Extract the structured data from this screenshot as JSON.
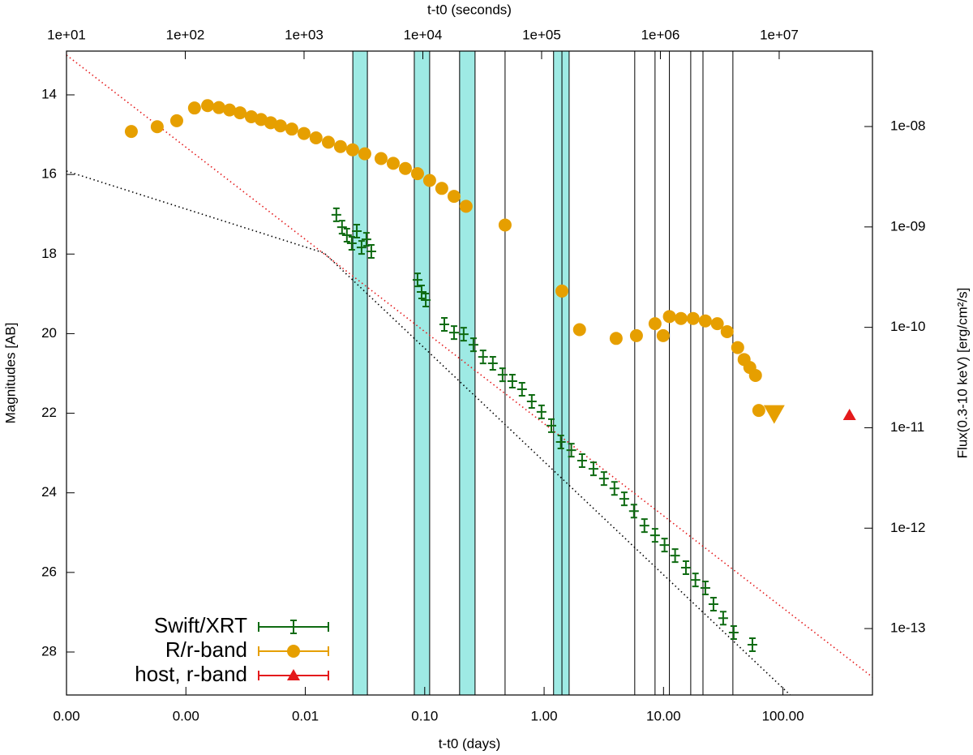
{
  "chart_data": {
    "type": "scatter",
    "xlabel": "t-t0 (days)",
    "x2label": "t-t0 (seconds)",
    "ylabel": "Magnitudes [AB]",
    "y2label": "Flux(0.3-10 keV) [erg/cm²/s]",
    "x_log": true,
    "y2_log": true,
    "y_reversed": true,
    "xlim": [
      0.0001,
      562
    ],
    "x2lim": [
      10,
      61000000
    ],
    "ylim": [
      12.9,
      29.08
    ],
    "y2lim": [
      2.18e-14,
      5.64e-08
    ],
    "xticks": [
      {
        "value": 0.0001,
        "label": "0.00"
      },
      {
        "value": 0.001,
        "label": "0.00"
      },
      {
        "value": 0.01,
        "label": "0.01"
      },
      {
        "value": 0.1,
        "label": "0.10"
      },
      {
        "value": 1,
        "label": "1.00"
      },
      {
        "value": 10,
        "label": "10.00"
      },
      {
        "value": 100,
        "label": "100.00"
      }
    ],
    "x2ticks": [
      {
        "value": 10,
        "label": "1e+01"
      },
      {
        "value": 100,
        "label": "1e+02"
      },
      {
        "value": 1000,
        "label": "1e+03"
      },
      {
        "value": 10000,
        "label": "1e+04"
      },
      {
        "value": 100000,
        "label": "1e+05"
      },
      {
        "value": 1000000,
        "label": "1e+06"
      },
      {
        "value": 10000000,
        "label": "1e+07"
      }
    ],
    "yticks": [
      14,
      16,
      18,
      20,
      22,
      24,
      26,
      28
    ],
    "y2ticks": [
      {
        "value": 1e-08,
        "label": "1e-08"
      },
      {
        "value": 1e-09,
        "label": "1e-09"
      },
      {
        "value": 1e-10,
        "label": "1e-10"
      },
      {
        "value": 1e-11,
        "label": "1e-11"
      },
      {
        "value": 1e-12,
        "label": "1e-12"
      },
      {
        "value": 1e-13,
        "label": "1e-13"
      }
    ],
    "legend": "lower left",
    "band_color": "#9eeae4",
    "bands": [
      [
        0.025,
        0.0331
      ],
      [
        0.0818,
        0.11
      ],
      [
        0.196,
        0.264
      ],
      [
        1.2,
        1.62
      ]
    ],
    "vlines": [
      0.025,
      0.0331,
      0.0818,
      0.11,
      0.196,
      0.264,
      0.471,
      1.2,
      1.41,
      1.62,
      5.74,
      8.49,
      11.2,
      16.9,
      21.4,
      38.1
    ],
    "series": [
      {
        "name": "Swift/XRT",
        "color": "#0f6b12",
        "axis": "y2",
        "marker": "cross",
        "x": [
          0.0182,
          0.0203,
          0.0223,
          0.0245,
          0.027,
          0.0296,
          0.0325,
          0.0357,
          0.0871,
          0.0942,
          0.102,
          0.146,
          0.176,
          0.212,
          0.256,
          0.308,
          0.372,
          0.449,
          0.542,
          0.653,
          0.788,
          0.951,
          1.15,
          1.38,
          1.69,
          2.08,
          2.59,
          3.17,
          3.88,
          4.69,
          5.65,
          6.92,
          8.49,
          10.2,
          12.5,
          15.4,
          18.5,
          22.4,
          26.2,
          31.6,
          38.7,
          55.5
        ],
        "values": [
          1.32e-09,
          9.95e-10,
          8.28e-10,
          6.88e-10,
          9.08e-10,
          6.25e-10,
          7.53e-10,
          5.7e-10,
          2.97e-10,
          2.25e-10,
          1.87e-10,
          1.07e-10,
          8.87e-11,
          8.55e-11,
          6.71e-11,
          5.08e-11,
          4.38e-11,
          3.37e-11,
          2.91e-11,
          2.42e-11,
          1.83e-11,
          1.44e-11,
          1.05e-11,
          7.21e-12,
          5.98e-12,
          4.7e-12,
          3.9e-12,
          3.12e-12,
          2.49e-12,
          1.96e-12,
          1.48e-12,
          1.06e-12,
          8.49e-13,
          6.79e-13,
          5.33e-13,
          4.04e-13,
          3.05e-13,
          2.54e-13,
          1.75e-13,
          1.27e-13,
          9.12e-14,
          6.9e-14
        ]
      },
      {
        "name": "R/r-band",
        "color": "#e69f00",
        "axis": "y",
        "marker": "circle",
        "x": [
          0.000349,
          0.000575,
          0.000838,
          0.00118,
          0.00152,
          0.00189,
          0.00232,
          0.00284,
          0.00353,
          0.00426,
          0.00513,
          0.00619,
          0.00771,
          0.00975,
          0.0123,
          0.0156,
          0.0197,
          0.0249,
          0.0315,
          0.0431,
          0.0545,
          0.0689,
          0.0871,
          0.11,
          0.139,
          0.176,
          0.222,
          0.471,
          1.41,
          1.98,
          4.01,
          5.93,
          8.49,
          9.93,
          11.2,
          14.0,
          17.7,
          22.4,
          28.2,
          34.1,
          41.8,
          47.3,
          52.8,
          58.9,
          62.8
        ],
        "values": [
          14.92,
          14.8,
          14.65,
          14.33,
          14.27,
          14.32,
          14.38,
          14.45,
          14.55,
          14.62,
          14.7,
          14.78,
          14.86,
          14.97,
          15.08,
          15.19,
          15.3,
          15.38,
          15.48,
          15.6,
          15.72,
          15.85,
          15.98,
          16.15,
          16.35,
          16.55,
          16.8,
          17.27,
          18.93,
          19.9,
          20.12,
          20.05,
          19.75,
          20.05,
          19.57,
          19.62,
          19.62,
          19.68,
          19.75,
          19.95,
          20.35,
          20.65,
          20.85,
          21.05,
          21.93
        ],
        "upper_limit": {
          "x": 84.5,
          "value": 22.0
        }
      },
      {
        "name": "host, r-band",
        "color": "#e41a1c",
        "axis": "y",
        "marker": "triangle",
        "x": [
          361
        ],
        "values": [
          22.05
        ]
      }
    ],
    "fits": [
      {
        "color": "#e41a1c",
        "axis": "y",
        "x": [
          0.0001,
          562
        ],
        "values": [
          13.0,
          28.63
        ]
      },
      {
        "color": "#000000",
        "axis": "y2",
        "x": [
          0.0001,
          0.0144,
          115
        ],
        "values": [
          3.6e-09,
          5.5e-10,
          2.18e-14
        ]
      }
    ]
  }
}
